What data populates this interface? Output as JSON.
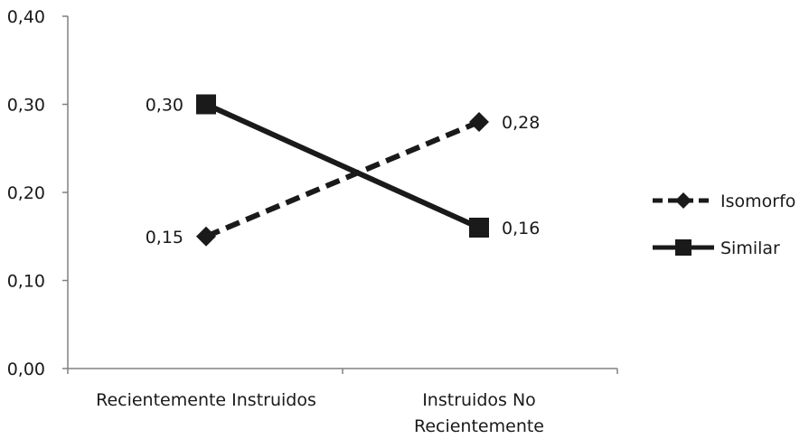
{
  "chart_data": {
    "type": "line",
    "categories": [
      "Recientemente Instruidos",
      "Instruidos No Recientemente"
    ],
    "category_lines": [
      [
        "Recientemente Instruidos"
      ],
      [
        "Instruidos No",
        "Recientemente"
      ]
    ],
    "series": [
      {
        "name": "Isomorfo",
        "values": [
          0.15,
          0.28
        ],
        "data_labels": [
          "0,15",
          "0,28"
        ],
        "line_style": "dashed",
        "marker": "diamond",
        "color": "#1a1a1a"
      },
      {
        "name": "Similar",
        "values": [
          0.3,
          0.16
        ],
        "data_labels": [
          "0,30",
          "0,16"
        ],
        "line_style": "solid",
        "marker": "square",
        "color": "#1a1a1a"
      }
    ],
    "ylim": [
      0,
      0.4
    ],
    "yticks": [
      0,
      0.1,
      0.2,
      0.3,
      0.4
    ],
    "ytick_labels": [
      "0,00",
      "0,10",
      "0,20",
      "0,30",
      "0,40"
    ],
    "title": "",
    "xlabel": "",
    "ylabel": "",
    "grid": false,
    "legend_position": "right"
  }
}
